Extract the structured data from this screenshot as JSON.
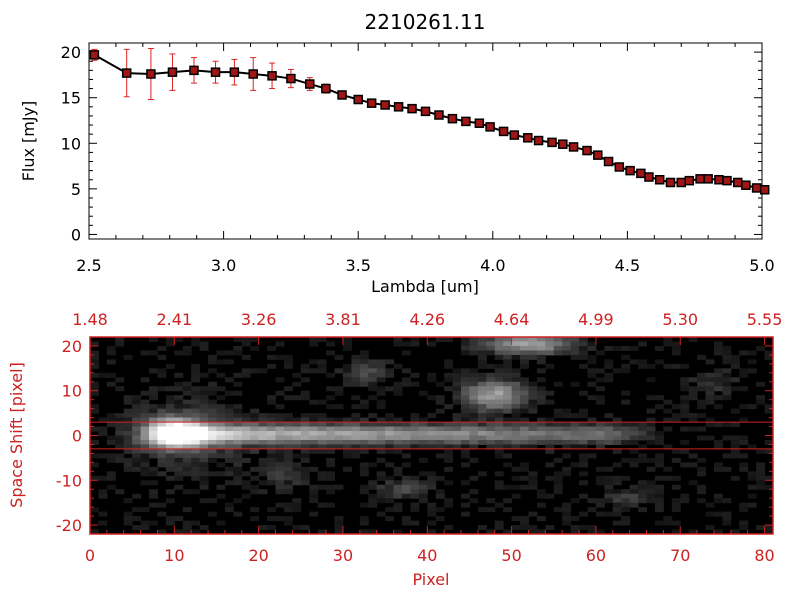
{
  "chart_data": [
    {
      "type": "line",
      "title": "2210261.11",
      "xlabel": "Lambda [um]",
      "ylabel": "Flux [mJy]",
      "xlim": [
        2.5,
        5.0
      ],
      "ylim": [
        -0.5,
        21
      ],
      "x_ticks": [
        "2.5",
        "3.0",
        "3.5",
        "4.0",
        "4.5",
        "5.0"
      ],
      "y_ticks": [
        "0",
        "5",
        "10",
        "15",
        "20"
      ],
      "colors": {
        "line": "#000000",
        "marker": "#a01515",
        "errorbar": "#dd2222"
      },
      "series": [
        {
          "x": [
            2.52,
            2.64,
            2.73,
            2.81,
            2.89,
            2.97,
            3.04,
            3.11,
            3.18,
            3.25,
            3.32,
            3.38,
            3.44,
            3.5,
            3.55,
            3.6,
            3.65,
            3.7,
            3.75,
            3.8,
            3.85,
            3.9,
            3.95,
            3.99,
            4.04,
            4.08,
            4.13,
            4.17,
            4.22,
            4.26,
            4.3,
            4.35,
            4.39,
            4.43,
            4.47,
            4.51,
            4.55,
            4.58,
            4.62,
            4.66,
            4.7,
            4.73,
            4.77,
            4.8,
            4.84,
            4.87,
            4.91,
            4.94,
            4.98,
            5.01
          ],
          "y": [
            19.7,
            17.7,
            17.6,
            17.8,
            18.0,
            17.8,
            17.8,
            17.6,
            17.4,
            17.1,
            16.5,
            16.0,
            15.3,
            14.8,
            14.4,
            14.2,
            14.0,
            13.8,
            13.5,
            13.1,
            12.7,
            12.4,
            12.2,
            11.8,
            11.3,
            10.9,
            10.6,
            10.3,
            10.1,
            9.9,
            9.6,
            9.2,
            8.7,
            8.0,
            7.4,
            7.0,
            6.7,
            6.3,
            6.0,
            5.7,
            5.7,
            5.9,
            6.1,
            6.1,
            6.0,
            5.9,
            5.7,
            5.4,
            5.1,
            4.9
          ],
          "yerr": [
            0.6,
            2.6,
            2.8,
            2.0,
            1.4,
            1.2,
            1.4,
            1.8,
            1.4,
            1.0,
            0.7,
            0.5,
            0.3,
            0.3,
            0.2,
            0.2,
            0.2,
            0.2,
            0.2,
            0.2,
            0.2,
            0.2,
            0.2,
            0.2,
            0.2,
            0.2,
            0.2,
            0.2,
            0.2,
            0.2,
            0.2,
            0.2,
            0.2,
            0.2,
            0.2,
            0.2,
            0.2,
            0.2,
            0.2,
            0.2,
            0.2,
            0.2,
            0.2,
            0.2,
            0.2,
            0.2,
            0.2,
            0.2,
            0.2,
            0.2
          ]
        }
      ]
    },
    {
      "type": "heatmap",
      "xlabel": "Pixel",
      "ylabel": "Space Shift [pixel]",
      "xlim": [
        0,
        81
      ],
      "ylim": [
        -22,
        22
      ],
      "x_ticks": [
        "0",
        "10",
        "20",
        "30",
        "40",
        "50",
        "60",
        "70",
        "80"
      ],
      "y_ticks": [
        "-20",
        "-10",
        "0",
        "10",
        "20"
      ],
      "top_ticks": [
        "1.48",
        "2.41",
        "3.26",
        "3.81",
        "4.26",
        "4.64",
        "4.99",
        "5.30",
        "5.55"
      ],
      "aperture_lines": [
        3,
        -3
      ],
      "colors": {
        "frame": "#cc2222",
        "background": "#000000"
      },
      "sources": [
        {
          "x": 10,
          "y": 0.5,
          "peak": 1.0,
          "sx": 2.5,
          "sy": 2.2
        },
        {
          "x": 48,
          "y": 9,
          "peak": 0.55,
          "sx": 2.5,
          "sy": 2.3
        },
        {
          "x": 52,
          "y": 20.5,
          "peak": 0.55,
          "sx": 3.5,
          "sy": 1.6
        },
        {
          "x": 33,
          "y": 14,
          "peak": 0.18,
          "sx": 2.0,
          "sy": 1.8
        },
        {
          "x": 37,
          "y": -12,
          "peak": 0.18,
          "sx": 2.2,
          "sy": 1.6
        },
        {
          "x": 64,
          "y": -14,
          "peak": 0.14,
          "sx": 2.0,
          "sy": 1.5
        },
        {
          "x": 74,
          "y": 12,
          "peak": 0.12,
          "sx": 2.0,
          "sy": 2.0
        },
        {
          "x": 23,
          "y": -9,
          "peak": 0.12,
          "sx": 2.0,
          "sy": 2.0
        }
      ],
      "trace": {
        "y": 0.3,
        "x_start": 10,
        "x_end": 62,
        "peak": 0.7,
        "sy": 1.5
      }
    }
  ]
}
